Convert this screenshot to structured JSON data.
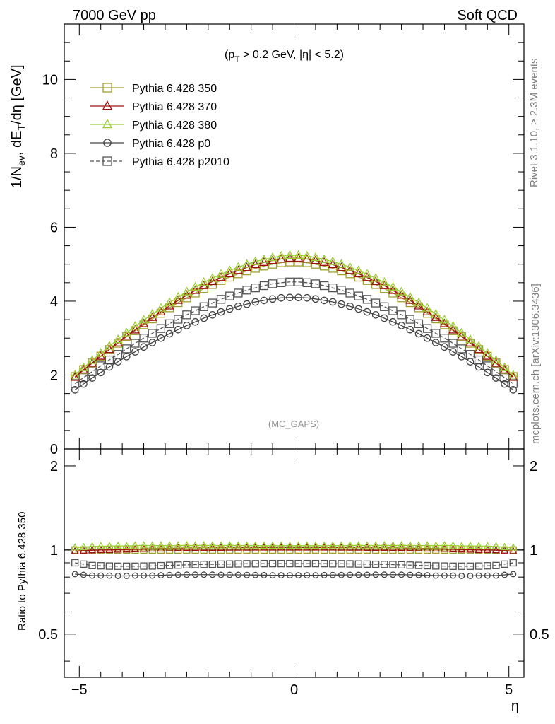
{
  "header": {
    "left": "7000 GeV pp",
    "right": "Soft QCD"
  },
  "side_text": {
    "rivet": "Rivet 3.1.10, ≥ 2.3M events",
    "mcplots": "mcplots.cern.ch [arXiv:1306.3436]"
  },
  "main_plot": {
    "ylabel": "1/N_ev, dE_T/dη [GeV]",
    "cuts": "(p_T > 0.2 GeV, |η| < 5.2)",
    "analysis": "(MC_GAPS)",
    "yticks": [
      "0",
      "2",
      "4",
      "6",
      "8",
      "10"
    ]
  },
  "ratio_plot": {
    "ylabel": "Ratio to Pythia 6.428 350",
    "yticks": [
      "0.5",
      "1",
      "2"
    ]
  },
  "xaxis": {
    "label": "η",
    "ticks": [
      "−5",
      "0",
      "5"
    ]
  },
  "chart_data": [
    {
      "type": "scatter",
      "panel": "main",
      "title": "",
      "xlabel": "η",
      "ylabel": "1/N_ev, dE_T/dη [GeV]",
      "xlim": [
        -5.35,
        5.35
      ],
      "ylim": [
        0,
        11.5
      ],
      "grid": false,
      "legend_position": "top-left",
      "x": [
        -5.1,
        -4.9,
        -4.7,
        -4.5,
        -4.3,
        -4.1,
        -3.9,
        -3.7,
        -3.5,
        -3.3,
        -3.1,
        -2.9,
        -2.7,
        -2.5,
        -2.3,
        -2.1,
        -1.9,
        -1.7,
        -1.5,
        -1.3,
        -1.1,
        -0.9,
        -0.7,
        -0.5,
        -0.3,
        -0.1,
        0.1,
        0.3,
        0.5,
        0.7,
        0.9,
        1.1,
        1.3,
        1.5,
        1.7,
        1.9,
        2.1,
        2.3,
        2.5,
        2.7,
        2.9,
        3.1,
        3.3,
        3.5,
        3.7,
        3.9,
        4.1,
        4.3,
        4.5,
        4.7,
        4.9,
        5.1
      ],
      "series": [
        {
          "name": "Pythia 6.428 350",
          "color": "#a0a030",
          "marker": "open-square",
          "line": "solid",
          "values": [
            1.96,
            2.15,
            2.33,
            2.51,
            2.69,
            2.86,
            3.04,
            3.2,
            3.36,
            3.52,
            3.67,
            3.82,
            3.96,
            4.09,
            4.22,
            4.34,
            4.45,
            4.56,
            4.65,
            4.74,
            4.82,
            4.89,
            4.95,
            5.0,
            5.04,
            5.06,
            5.06,
            5.04,
            5.0,
            4.95,
            4.89,
            4.82,
            4.74,
            4.65,
            4.56,
            4.45,
            4.34,
            4.22,
            4.09,
            3.96,
            3.82,
            3.67,
            3.52,
            3.36,
            3.2,
            3.04,
            2.86,
            2.69,
            2.51,
            2.33,
            2.15,
            1.96
          ]
        },
        {
          "name": "Pythia 6.428 370",
          "color": "#a01010",
          "marker": "open-triangle",
          "line": "solid",
          "values": [
            1.94,
            2.14,
            2.32,
            2.51,
            2.69,
            2.87,
            3.05,
            3.22,
            3.39,
            3.56,
            3.71,
            3.87,
            4.02,
            4.16,
            4.29,
            4.42,
            4.53,
            4.64,
            4.74,
            4.83,
            4.91,
            4.99,
            5.05,
            5.1,
            5.14,
            5.16,
            5.16,
            5.14,
            5.1,
            5.05,
            4.99,
            4.91,
            4.83,
            4.74,
            4.64,
            4.53,
            4.42,
            4.29,
            4.16,
            4.02,
            3.87,
            3.71,
            3.56,
            3.39,
            3.22,
            3.05,
            2.87,
            2.69,
            2.51,
            2.32,
            2.14,
            1.94
          ]
        },
        {
          "name": "Pythia 6.428 380",
          "color": "#9acd32",
          "marker": "open-triangle",
          "line": "solid",
          "values": [
            2.0,
            2.2,
            2.4,
            2.59,
            2.78,
            2.96,
            3.14,
            3.32,
            3.49,
            3.65,
            3.81,
            3.96,
            4.11,
            4.25,
            4.38,
            4.51,
            4.62,
            4.73,
            4.83,
            4.92,
            5.0,
            5.07,
            5.13,
            5.18,
            5.22,
            5.24,
            5.24,
            5.22,
            5.18,
            5.13,
            5.07,
            5.0,
            4.92,
            4.83,
            4.73,
            4.62,
            4.51,
            4.38,
            4.25,
            4.11,
            3.96,
            3.81,
            3.65,
            3.49,
            3.32,
            3.14,
            2.96,
            2.78,
            2.59,
            2.4,
            2.2,
            2.0
          ]
        },
        {
          "name": "Pythia 6.428 p0",
          "color": "#444444",
          "marker": "open-circle",
          "line": "solid",
          "values": [
            1.6,
            1.76,
            1.92,
            2.07,
            2.22,
            2.36,
            2.5,
            2.63,
            2.76,
            2.88,
            3.0,
            3.12,
            3.23,
            3.34,
            3.44,
            3.54,
            3.63,
            3.71,
            3.79,
            3.86,
            3.92,
            3.98,
            4.02,
            4.06,
            4.09,
            4.1,
            4.1,
            4.09,
            4.06,
            4.02,
            3.98,
            3.92,
            3.86,
            3.79,
            3.71,
            3.63,
            3.54,
            3.44,
            3.34,
            3.23,
            3.12,
            3.0,
            2.88,
            2.76,
            2.63,
            2.5,
            2.36,
            2.22,
            2.07,
            1.92,
            1.76,
            1.6
          ]
        },
        {
          "name": "Pythia 6.428 p2010",
          "color": "#555555",
          "marker": "open-square",
          "line": "dashed",
          "values": [
            1.77,
            1.93,
            2.09,
            2.25,
            2.41,
            2.56,
            2.71,
            2.86,
            3.0,
            3.13,
            3.26,
            3.39,
            3.51,
            3.63,
            3.74,
            3.85,
            3.95,
            4.05,
            4.14,
            4.22,
            4.3,
            4.36,
            4.42,
            4.47,
            4.5,
            4.52,
            4.52,
            4.5,
            4.47,
            4.42,
            4.36,
            4.3,
            4.22,
            4.14,
            4.05,
            3.95,
            3.85,
            3.74,
            3.63,
            3.51,
            3.39,
            3.26,
            3.13,
            3.0,
            2.86,
            2.71,
            2.56,
            2.41,
            2.25,
            2.09,
            1.93,
            1.77
          ]
        }
      ]
    },
    {
      "type": "scatter",
      "panel": "ratio",
      "title": "",
      "xlabel": "η",
      "ylabel": "Ratio to Pythia 6.428 350",
      "xlim": [
        -5.35,
        5.35
      ],
      "ylim": [
        0.35,
        2.3
      ],
      "ylog": true,
      "grid": false,
      "x": [
        -5.1,
        -4.9,
        -4.7,
        -4.5,
        -4.3,
        -4.1,
        -3.9,
        -3.7,
        -3.5,
        -3.3,
        -3.1,
        -2.9,
        -2.7,
        -2.5,
        -2.3,
        -2.1,
        -1.9,
        -1.7,
        -1.5,
        -1.3,
        -1.1,
        -0.9,
        -0.7,
        -0.5,
        -0.3,
        -0.1,
        0.1,
        0.3,
        0.5,
        0.7,
        0.9,
        1.1,
        1.3,
        1.5,
        1.7,
        1.9,
        2.1,
        2.3,
        2.5,
        2.7,
        2.9,
        3.1,
        3.3,
        3.5,
        3.7,
        3.9,
        4.1,
        4.3,
        4.5,
        4.7,
        4.9,
        5.1
      ],
      "series": [
        {
          "name": "Pythia 6.428 350",
          "color": "#a0a030",
          "marker": "open-square",
          "line": "solid",
          "values": [
            1.0,
            1.0,
            1.0,
            1.0,
            1.0,
            1.0,
            1.0,
            1.0,
            1.0,
            1.0,
            1.0,
            1.0,
            1.0,
            1.0,
            1.0,
            1.0,
            1.0,
            1.0,
            1.0,
            1.0,
            1.0,
            1.0,
            1.0,
            1.0,
            1.0,
            1.0,
            1.0,
            1.0,
            1.0,
            1.0,
            1.0,
            1.0,
            1.0,
            1.0,
            1.0,
            1.0,
            1.0,
            1.0,
            1.0,
            1.0,
            1.0,
            1.0,
            1.0,
            1.0,
            1.0,
            1.0,
            1.0,
            1.0,
            1.0,
            1.0,
            1.0,
            1.0
          ]
        },
        {
          "name": "Pythia 6.428 370",
          "color": "#a01010",
          "marker": "open-triangle",
          "line": "solid",
          "values": [
            0.99,
            0.995,
            0.998,
            1.0,
            1.0,
            1.003,
            1.004,
            1.006,
            1.009,
            1.011,
            1.011,
            1.013,
            1.015,
            1.017,
            1.017,
            1.018,
            1.018,
            1.018,
            1.019,
            1.019,
            1.019,
            1.02,
            1.02,
            1.02,
            1.02,
            1.02,
            1.02,
            1.02,
            1.02,
            1.02,
            1.02,
            1.019,
            1.019,
            1.019,
            1.018,
            1.018,
            1.018,
            1.017,
            1.017,
            1.015,
            1.013,
            1.011,
            1.011,
            1.009,
            1.006,
            1.004,
            1.003,
            1.0,
            1.0,
            0.998,
            0.995,
            0.99
          ]
        },
        {
          "name": "Pythia 6.428 380",
          "color": "#9acd32",
          "marker": "open-triangle",
          "line": "solid",
          "values": [
            1.02,
            1.023,
            1.03,
            1.032,
            1.033,
            1.035,
            1.033,
            1.037,
            1.039,
            1.037,
            1.038,
            1.037,
            1.038,
            1.039,
            1.038,
            1.039,
            1.038,
            1.037,
            1.039,
            1.038,
            1.037,
            1.037,
            1.036,
            1.036,
            1.036,
            1.036,
            1.036,
            1.036,
            1.036,
            1.036,
            1.037,
            1.037,
            1.038,
            1.039,
            1.037,
            1.038,
            1.039,
            1.038,
            1.039,
            1.038,
            1.037,
            1.038,
            1.037,
            1.039,
            1.037,
            1.033,
            1.035,
            1.033,
            1.032,
            1.03,
            1.023,
            1.02
          ]
        },
        {
          "name": "Pythia 6.428 p0",
          "color": "#444444",
          "marker": "open-circle",
          "line": "solid",
          "values": [
            0.82,
            0.815,
            0.81,
            0.81,
            0.81,
            0.808,
            0.808,
            0.81,
            0.81,
            0.81,
            0.812,
            0.814,
            0.815,
            0.816,
            0.816,
            0.816,
            0.816,
            0.815,
            0.815,
            0.815,
            0.814,
            0.814,
            0.813,
            0.812,
            0.812,
            0.812,
            0.812,
            0.812,
            0.812,
            0.813,
            0.814,
            0.814,
            0.815,
            0.815,
            0.815,
            0.816,
            0.816,
            0.816,
            0.816,
            0.815,
            0.814,
            0.812,
            0.81,
            0.81,
            0.81,
            0.808,
            0.808,
            0.81,
            0.81,
            0.81,
            0.815,
            0.82
          ]
        },
        {
          "name": "Pythia 6.428 p2010",
          "color": "#555555",
          "marker": "open-square",
          "line": "dashed",
          "values": [
            0.9,
            0.89,
            0.88,
            0.878,
            0.876,
            0.875,
            0.875,
            0.875,
            0.876,
            0.877,
            0.879,
            0.881,
            0.883,
            0.885,
            0.887,
            0.888,
            0.889,
            0.89,
            0.891,
            0.892,
            0.893,
            0.893,
            0.894,
            0.894,
            0.894,
            0.894,
            0.894,
            0.894,
            0.894,
            0.894,
            0.893,
            0.893,
            0.892,
            0.891,
            0.89,
            0.889,
            0.888,
            0.887,
            0.885,
            0.883,
            0.881,
            0.879,
            0.877,
            0.876,
            0.875,
            0.875,
            0.875,
            0.876,
            0.878,
            0.88,
            0.89,
            0.9
          ]
        }
      ]
    }
  ]
}
